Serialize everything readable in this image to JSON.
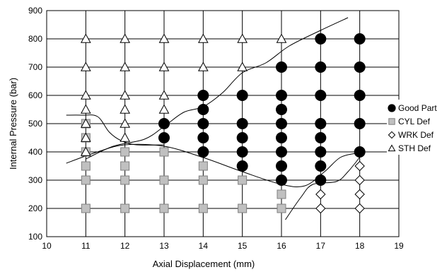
{
  "chart_data": {
    "type": "scatter",
    "xlabel": "Axial Displacement (mm)",
    "ylabel": "Internal Pressure (bar)",
    "xlim": [
      10,
      19
    ],
    "ylim": [
      100,
      900
    ],
    "x_ticks": [
      "10",
      "11",
      "12",
      "13",
      "14",
      "15",
      "16",
      "17",
      "18",
      "19"
    ],
    "y_ticks": [
      "100",
      "200",
      "300",
      "400",
      "500",
      "600",
      "700",
      "800",
      "900"
    ],
    "grid": "horizontal and vertical",
    "legend_position": "right",
    "series": [
      {
        "name": "Good Part",
        "marker": "filled-circle",
        "color": "#000000",
        "points": [
          [
            13,
            450
          ],
          [
            13,
            500
          ],
          [
            14,
            400
          ],
          [
            14,
            450
          ],
          [
            14,
            500
          ],
          [
            14,
            550
          ],
          [
            14,
            600
          ],
          [
            15,
            350
          ],
          [
            15,
            400
          ],
          [
            15,
            450
          ],
          [
            15,
            500
          ],
          [
            15,
            600
          ],
          [
            16,
            300
          ],
          [
            16,
            350
          ],
          [
            16,
            400
          ],
          [
            16,
            450
          ],
          [
            16,
            500
          ],
          [
            16,
            550
          ],
          [
            16,
            600
          ],
          [
            16,
            700
          ],
          [
            17,
            300
          ],
          [
            17,
            350
          ],
          [
            17,
            400
          ],
          [
            17,
            450
          ],
          [
            17,
            500
          ],
          [
            17,
            600
          ],
          [
            17,
            700
          ],
          [
            17,
            800
          ],
          [
            18,
            400
          ],
          [
            18,
            500
          ],
          [
            18,
            600
          ],
          [
            18,
            700
          ],
          [
            18,
            800
          ]
        ]
      },
      {
        "name": "CYL Def",
        "marker": "gray-square",
        "color": "#c0c0c0",
        "points": [
          [
            11,
            200
          ],
          [
            11,
            300
          ],
          [
            11,
            350
          ],
          [
            11,
            400
          ],
          [
            11,
            450
          ],
          [
            11,
            500
          ],
          [
            12,
            200
          ],
          [
            12,
            300
          ],
          [
            12,
            350
          ],
          [
            12,
            400
          ],
          [
            13,
            200
          ],
          [
            13,
            300
          ],
          [
            13,
            400
          ],
          [
            14,
            200
          ],
          [
            14,
            300
          ],
          [
            14,
            350
          ],
          [
            15,
            200
          ],
          [
            15,
            300
          ],
          [
            16,
            200
          ],
          [
            16,
            250
          ]
        ]
      },
      {
        "name": "WRK Def",
        "marker": "open-diamond",
        "color": "#ffffff",
        "points": [
          [
            17,
            200
          ],
          [
            17,
            250
          ],
          [
            18,
            200
          ],
          [
            18,
            250
          ],
          [
            18,
            300
          ],
          [
            18,
            350
          ]
        ]
      },
      {
        "name": "STH Def",
        "marker": "open-triangle",
        "color": "#ffffff",
        "points": [
          [
            11,
            400
          ],
          [
            11,
            450
          ],
          [
            11,
            500
          ],
          [
            11,
            550
          ],
          [
            11,
            600
          ],
          [
            11,
            700
          ],
          [
            11,
            800
          ],
          [
            12,
            450
          ],
          [
            12,
            500
          ],
          [
            12,
            550
          ],
          [
            12,
            600
          ],
          [
            12,
            700
          ],
          [
            12,
            800
          ],
          [
            13,
            550
          ],
          [
            13,
            600
          ],
          [
            13,
            700
          ],
          [
            13,
            800
          ],
          [
            14,
            700
          ],
          [
            14,
            800
          ],
          [
            15,
            700
          ],
          [
            15,
            800
          ],
          [
            16,
            800
          ]
        ]
      }
    ],
    "boundary_curves": [
      [
        [
          10.5,
          360
        ],
        [
          11.3,
          400
        ],
        [
          12,
          425
        ],
        [
          13,
          420
        ],
        [
          14,
          380
        ],
        [
          15,
          330
        ],
        [
          16,
          285
        ],
        [
          16.6,
          280
        ],
        [
          17.1,
          330
        ],
        [
          17.5,
          380
        ],
        [
          17.9,
          395
        ]
      ],
      [
        [
          10.5,
          530
        ],
        [
          10.9,
          530
        ],
        [
          11.3,
          525
        ],
        [
          11.6,
          470
        ],
        [
          11.9,
          440
        ],
        [
          12.3,
          425
        ],
        [
          13.0,
          425
        ]
      ],
      [
        [
          11.0,
          375
        ],
        [
          11.7,
          420
        ],
        [
          12.5,
          445
        ],
        [
          13.0,
          490
        ],
        [
          13.5,
          540
        ],
        [
          14.0,
          560
        ],
        [
          14.5,
          610
        ],
        [
          15.0,
          680
        ],
        [
          15.6,
          715
        ],
        [
          16.2,
          775
        ],
        [
          17.0,
          830
        ],
        [
          17.7,
          875
        ]
      ],
      [
        [
          16.1,
          160
        ],
        [
          16.5,
          240
        ],
        [
          16.8,
          285
        ],
        [
          17.4,
          295
        ],
        [
          17.7,
          330
        ],
        [
          18.05,
          390
        ]
      ]
    ]
  }
}
